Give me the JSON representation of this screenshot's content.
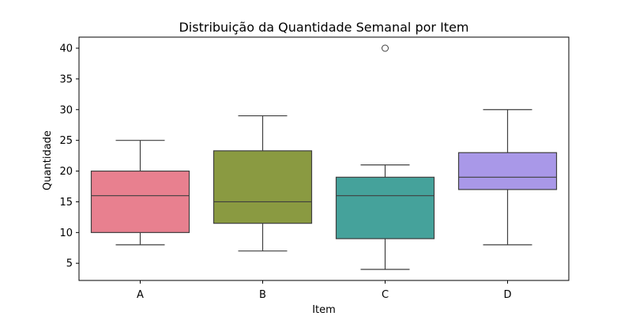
{
  "chart_data": {
    "type": "box",
    "title": "Distribuição da Quantidade Semanal por Item",
    "xlabel": "Item",
    "ylabel": "Quantidade",
    "ylim": [
      2.2,
      41.8
    ],
    "yticks": [
      5,
      10,
      15,
      20,
      25,
      30,
      35,
      40
    ],
    "grid": false,
    "categories": [
      "A",
      "B",
      "C",
      "D"
    ],
    "boxes": [
      {
        "category": "A",
        "whislo": 8,
        "q1": 10,
        "med": 16,
        "q3": 20,
        "whishi": 25,
        "fliers": [],
        "color": "#e8808f"
      },
      {
        "category": "B",
        "whislo": 7,
        "q1": 11.5,
        "med": 15,
        "q3": 23.3,
        "whishi": 29,
        "fliers": [],
        "color": "#8a9a41"
      },
      {
        "category": "C",
        "whislo": 4,
        "q1": 9,
        "med": 16,
        "q3": 19,
        "whishi": 21,
        "fliers": [
          40
        ],
        "color": "#45a29b"
      },
      {
        "category": "D",
        "whislo": 8,
        "q1": 17,
        "med": 19,
        "q3": 23,
        "whishi": 30,
        "fliers": [],
        "color": "#a998e8"
      }
    ]
  }
}
